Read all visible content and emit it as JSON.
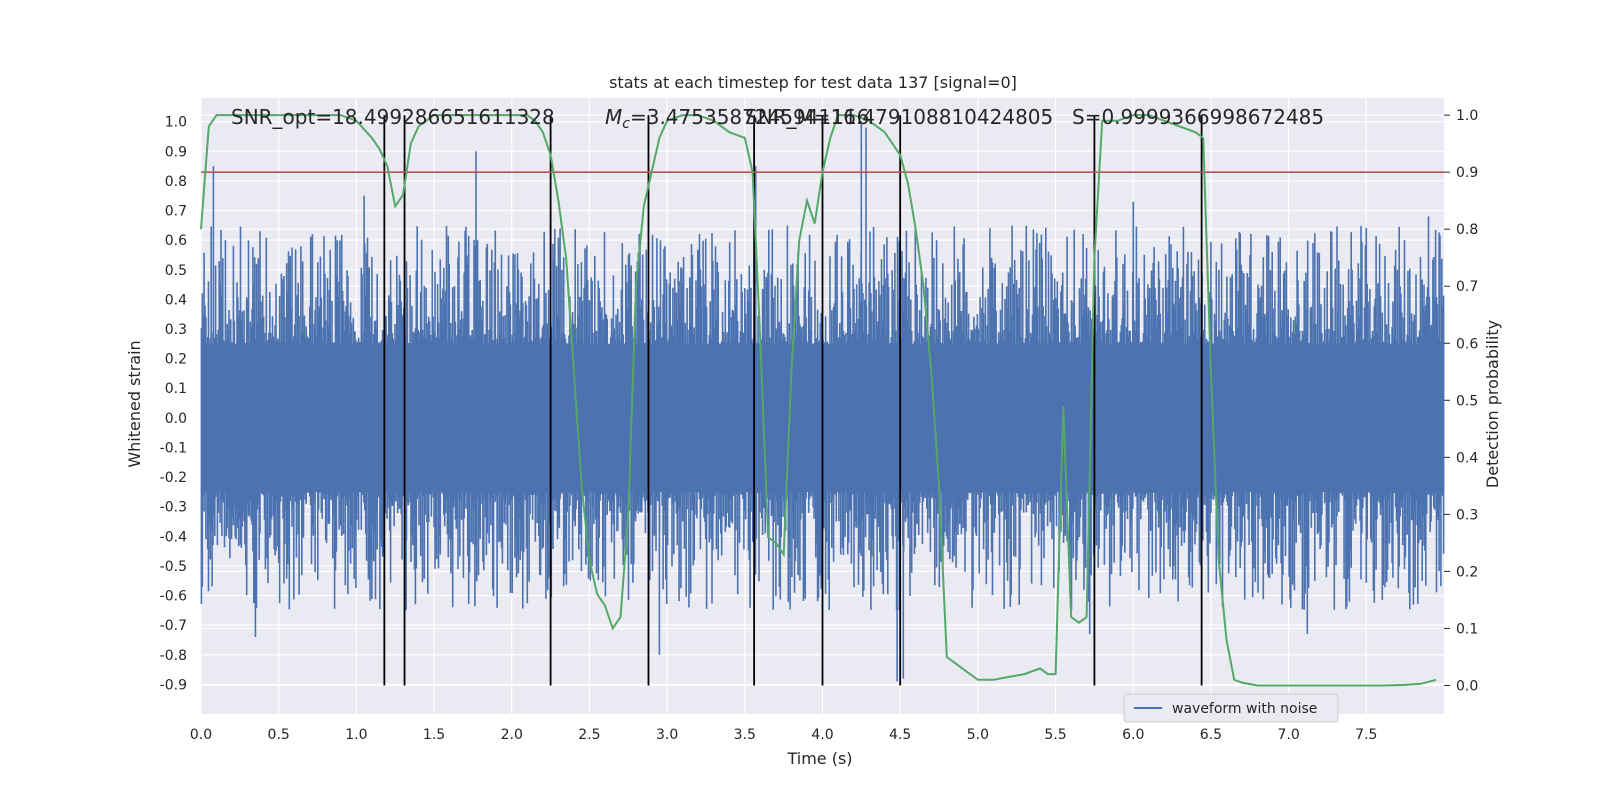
{
  "chart_data": {
    "type": "line",
    "title": "stats at each timestep for test data 137 [signal=0]",
    "xlabel": "Time (s)",
    "ylabel": "Whitened strain",
    "y2label": "Detection probability",
    "xlim": [
      0,
      8
    ],
    "ylim": [
      -1.0,
      1.08
    ],
    "y2lim": [
      -0.05,
      1.03
    ],
    "xticks": [
      "0.0",
      "0.5",
      "1.0",
      "1.5",
      "2.0",
      "2.5",
      "3.0",
      "3.5",
      "4.0",
      "4.5",
      "5.0",
      "5.5",
      "6.0",
      "6.5",
      "7.0",
      "7.5"
    ],
    "yticks": [
      "-0.9",
      "-0.8",
      "-0.7",
      "-0.6",
      "-0.5",
      "-0.4",
      "-0.3",
      "-0.2",
      "-0.1",
      "0.0",
      "0.1",
      "0.2",
      "0.3",
      "0.4",
      "0.5",
      "0.6",
      "0.7",
      "0.8",
      "0.9",
      "1.0"
    ],
    "y2ticks": [
      "0.0",
      "0.1",
      "0.2",
      "0.3",
      "0.4",
      "0.5",
      "0.6",
      "0.7",
      "0.8",
      "0.9",
      "1.0"
    ],
    "grid": true,
    "legend": {
      "position": "lower-right",
      "entries": [
        "waveform with noise"
      ]
    },
    "annotations": [
      {
        "text": "SNR_opt=18.499286651611328",
        "x": 0.2
      },
      {
        "text_main": "M",
        "text_sub": "c",
        "text_rest": "=3.4753587245941116",
        "x": 2.6
      },
      {
        "text": "SNR_M=16.479108810424805",
        "x": 3.5
      },
      {
        "text": "S=0.9999366998672485",
        "x": 5.6
      }
    ],
    "threshold_line": {
      "y2": 0.9,
      "color": "#c44e52"
    },
    "vertical_lines": [
      1.18,
      1.31,
      2.25,
      2.88,
      3.56,
      4.0,
      4.5,
      5.75,
      6.44
    ],
    "series": [
      {
        "name": "waveform with noise",
        "color": "#4c72b0",
        "axis": "left",
        "envelope": {
          "core": 0.25,
          "dense": 0.5,
          "max": 1.0,
          "min": -0.88
        },
        "spikes_pos": [
          [
            0.08,
            0.85
          ],
          [
            0.38,
            0.63
          ],
          [
            1.05,
            0.75
          ],
          [
            1.77,
            0.9
          ],
          [
            2.82,
            0.62
          ],
          [
            3.57,
            0.85
          ],
          [
            4.25,
            1.0
          ],
          [
            4.28,
            0.98
          ],
          [
            4.5,
            0.85
          ],
          [
            6.0,
            0.73
          ],
          [
            7.9,
            0.68
          ]
        ],
        "spikes_neg": [
          [
            0.35,
            -0.74
          ],
          [
            1.18,
            -0.87
          ],
          [
            1.32,
            -0.65
          ],
          [
            2.95,
            -0.8
          ],
          [
            4.48,
            -0.89
          ],
          [
            4.52,
            -0.88
          ],
          [
            5.72,
            -0.73
          ],
          [
            7.12,
            -0.73
          ]
        ]
      },
      {
        "name": "",
        "color": "#55a868",
        "axis": "right",
        "x": [
          0.0,
          0.05,
          0.1,
          0.2,
          0.3,
          0.5,
          0.7,
          0.9,
          1.0,
          1.1,
          1.15,
          1.2,
          1.25,
          1.3,
          1.35,
          1.4,
          1.5,
          1.7,
          1.9,
          2.1,
          2.15,
          2.2,
          2.25,
          2.3,
          2.35,
          2.4,
          2.45,
          2.5,
          2.55,
          2.6,
          2.65,
          2.7,
          2.75,
          2.8,
          2.85,
          2.9,
          2.95,
          3.0,
          3.1,
          3.2,
          3.3,
          3.4,
          3.5,
          3.55,
          3.6,
          3.65,
          3.7,
          3.75,
          3.8,
          3.85,
          3.9,
          3.95,
          4.0,
          4.05,
          4.1,
          4.2,
          4.3,
          4.4,
          4.45,
          4.5,
          4.55,
          4.6,
          4.65,
          4.7,
          4.75,
          4.8,
          4.85,
          4.9,
          5.0,
          5.1,
          5.2,
          5.3,
          5.4,
          5.45,
          5.5,
          5.55,
          5.6,
          5.65,
          5.7,
          5.75,
          5.8,
          5.9,
          6.0,
          6.1,
          6.2,
          6.3,
          6.4,
          6.45,
          6.5,
          6.55,
          6.6,
          6.65,
          6.7,
          6.8,
          7.0,
          7.2,
          7.4,
          7.6,
          7.75,
          7.85,
          7.95
        ],
        "values": [
          0.8,
          0.98,
          1.0,
          1.0,
          1.0,
          1.0,
          1.0,
          1.0,
          0.99,
          0.96,
          0.94,
          0.91,
          0.84,
          0.86,
          0.95,
          0.98,
          1.0,
          1.0,
          1.0,
          1.0,
          0.99,
          0.97,
          0.93,
          0.85,
          0.75,
          0.55,
          0.35,
          0.22,
          0.16,
          0.14,
          0.1,
          0.12,
          0.3,
          0.7,
          0.84,
          0.9,
          0.96,
          0.99,
          1.0,
          1.0,
          0.99,
          0.97,
          0.96,
          0.9,
          0.6,
          0.26,
          0.25,
          0.23,
          0.55,
          0.78,
          0.85,
          0.81,
          0.9,
          0.96,
          1.0,
          1.0,
          0.99,
          0.97,
          0.95,
          0.93,
          0.88,
          0.8,
          0.7,
          0.55,
          0.35,
          0.05,
          0.04,
          0.03,
          0.01,
          0.01,
          0.015,
          0.02,
          0.03,
          0.02,
          0.02,
          0.49,
          0.12,
          0.11,
          0.12,
          0.75,
          0.99,
          0.99,
          1.0,
          1.0,
          0.99,
          0.98,
          0.97,
          0.96,
          0.55,
          0.22,
          0.08,
          0.01,
          0.005,
          0.0,
          0.0,
          0.0,
          0.0,
          0.0,
          0.001,
          0.003,
          0.01
        ]
      }
    ]
  }
}
